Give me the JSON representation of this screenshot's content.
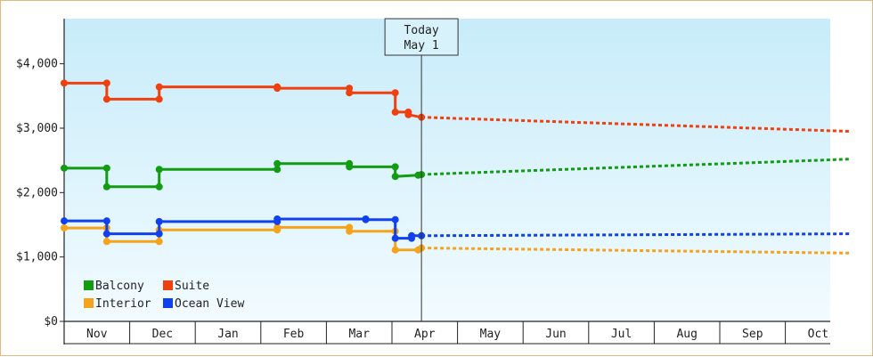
{
  "chart_data": {
    "type": "line",
    "ylim": [
      0,
      4700
    ],
    "yticks": [
      0,
      1000,
      2000,
      3000,
      4000
    ],
    "ytick_labels": [
      "$0",
      "$1,000",
      "$2,000",
      "$3,000",
      "$4,000"
    ],
    "months": [
      "Nov",
      "Dec",
      "Jan",
      "Feb",
      "Mar",
      "Apr",
      "May",
      "Jun",
      "Jul",
      "Aug",
      "Sep",
      "Oct"
    ],
    "today_label": [
      "Today",
      "May 1"
    ],
    "today_x": 5.45,
    "series": [
      {
        "name": "Balcony",
        "color": "#129c12",
        "actual": [
          [
            0,
            2380
          ],
          [
            0.65,
            2380
          ],
          [
            0.65,
            2090
          ],
          [
            1.45,
            2090
          ],
          [
            1.45,
            2360
          ],
          [
            3.25,
            2360
          ],
          [
            3.25,
            2450
          ],
          [
            4.35,
            2450
          ],
          [
            4.35,
            2400
          ],
          [
            5.05,
            2400
          ],
          [
            5.05,
            2250
          ],
          [
            5.4,
            2270
          ],
          [
            5.45,
            2280
          ]
        ],
        "projected": [
          [
            5.45,
            2280
          ],
          [
            12,
            2520
          ]
        ]
      },
      {
        "name": "Suite",
        "color": "#f0400f",
        "actual": [
          [
            0,
            3700
          ],
          [
            0.65,
            3700
          ],
          [
            0.65,
            3450
          ],
          [
            1.45,
            3450
          ],
          [
            1.45,
            3640
          ],
          [
            3.25,
            3640
          ],
          [
            3.25,
            3620
          ],
          [
            4.35,
            3620
          ],
          [
            4.35,
            3550
          ],
          [
            5.05,
            3550
          ],
          [
            5.05,
            3250
          ],
          [
            5.25,
            3250
          ],
          [
            5.25,
            3210
          ],
          [
            5.45,
            3170
          ]
        ],
        "projected": [
          [
            5.45,
            3170
          ],
          [
            12,
            2950
          ]
        ]
      },
      {
        "name": "Interior",
        "color": "#f5a31a",
        "actual": [
          [
            0,
            1450
          ],
          [
            0.65,
            1450
          ],
          [
            0.65,
            1240
          ],
          [
            1.45,
            1240
          ],
          [
            1.45,
            1420
          ],
          [
            3.25,
            1420
          ],
          [
            3.25,
            1460
          ],
          [
            4.35,
            1460
          ],
          [
            4.35,
            1400
          ],
          [
            5.05,
            1400
          ],
          [
            5.05,
            1110
          ],
          [
            5.4,
            1110
          ],
          [
            5.45,
            1140
          ]
        ],
        "projected": [
          [
            5.45,
            1140
          ],
          [
            12,
            1060
          ]
        ]
      },
      {
        "name": "Ocean View",
        "color": "#1140ee",
        "actual": [
          [
            0,
            1560
          ],
          [
            0.65,
            1560
          ],
          [
            0.65,
            1360
          ],
          [
            1.45,
            1360
          ],
          [
            1.45,
            1550
          ],
          [
            3.25,
            1550
          ],
          [
            3.25,
            1590
          ],
          [
            4.6,
            1590
          ],
          [
            4.6,
            1580
          ],
          [
            5.05,
            1580
          ],
          [
            5.05,
            1290
          ],
          [
            5.3,
            1290
          ],
          [
            5.3,
            1330
          ],
          [
            5.45,
            1330
          ]
        ],
        "projected": [
          [
            5.45,
            1330
          ],
          [
            12,
            1360
          ]
        ]
      }
    ]
  }
}
